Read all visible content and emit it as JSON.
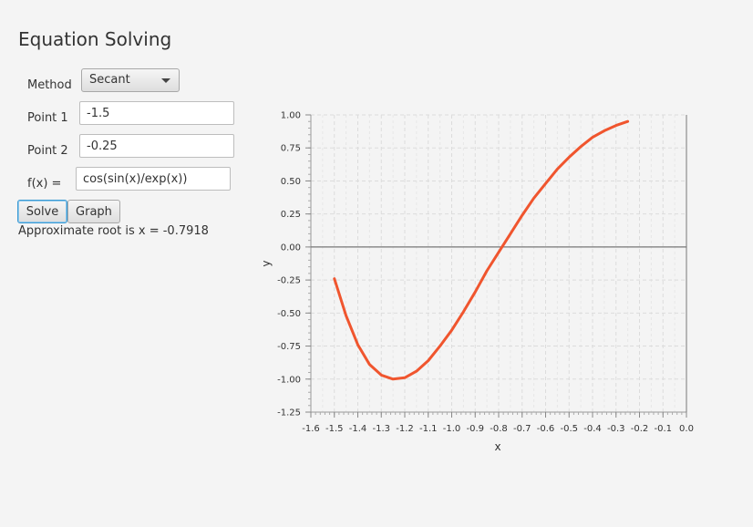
{
  "title": "Equation Solving",
  "method": {
    "label": "Method",
    "selected": "Secant"
  },
  "point1": {
    "label": "Point 1",
    "value": "-1.5"
  },
  "point2": {
    "label": "Point 2",
    "value": "-0.25"
  },
  "fx": {
    "label": "f(x) =",
    "value": "cos(sin(x)/exp(x))"
  },
  "buttons": {
    "solve": "Solve",
    "graph": "Graph"
  },
  "result": "Approximate root is x = -0.7918",
  "chart_data": {
    "type": "line",
    "xlabel": "x",
    "ylabel": "y",
    "xlim": [
      -1.6,
      0.0
    ],
    "ylim": [
      -1.25,
      1.0
    ],
    "x_ticks": [
      -1.6,
      -1.5,
      -1.4,
      -1.3,
      -1.2,
      -1.1,
      -1.0,
      -0.9,
      -0.8,
      -0.7,
      -0.6,
      -0.5,
      -0.4,
      -0.3,
      -0.2,
      -0.1,
      0.0
    ],
    "x_tick_labels": [
      "-1.6",
      "-1.5",
      "-1.4",
      "-1.3",
      "-1.2",
      "-1.1",
      "-1.0",
      "-0.9",
      "-0.8",
      "-0.7",
      "-0.6",
      "-0.5",
      "-0.4",
      "-0.3",
      "-0.2",
      "-0.1",
      "0.0"
    ],
    "y_ticks": [
      1.0,
      0.75,
      0.5,
      0.25,
      0.0,
      -0.25,
      -0.5,
      -0.75,
      -1.0,
      -1.25
    ],
    "y_tick_labels": [
      "1.00",
      "0.75",
      "0.50",
      "0.25",
      "0.00",
      "-0.25",
      "-0.50",
      "-0.75",
      "-1.00",
      "-1.25"
    ],
    "grid": true,
    "series_color": "#f0552e",
    "series": [
      {
        "x": [
          -1.5,
          -1.45,
          -1.4,
          -1.35,
          -1.3,
          -1.25,
          -1.2,
          -1.15,
          -1.1,
          -1.05,
          -1.0,
          -0.95,
          -0.9,
          -0.85,
          -0.8,
          -0.75,
          -0.7,
          -0.65,
          -0.6,
          -0.55,
          -0.5,
          -0.45,
          -0.4,
          -0.35,
          -0.3,
          -0.25
        ],
        "y": [
          -0.24,
          -0.52,
          -0.74,
          -0.89,
          -0.97,
          -1.0,
          -0.99,
          -0.94,
          -0.86,
          -0.75,
          -0.63,
          -0.49,
          -0.34,
          -0.18,
          -0.04,
          0.1,
          0.24,
          0.37,
          0.48,
          0.59,
          0.68,
          0.76,
          0.83,
          0.88,
          0.92,
          0.95
        ]
      }
    ]
  }
}
